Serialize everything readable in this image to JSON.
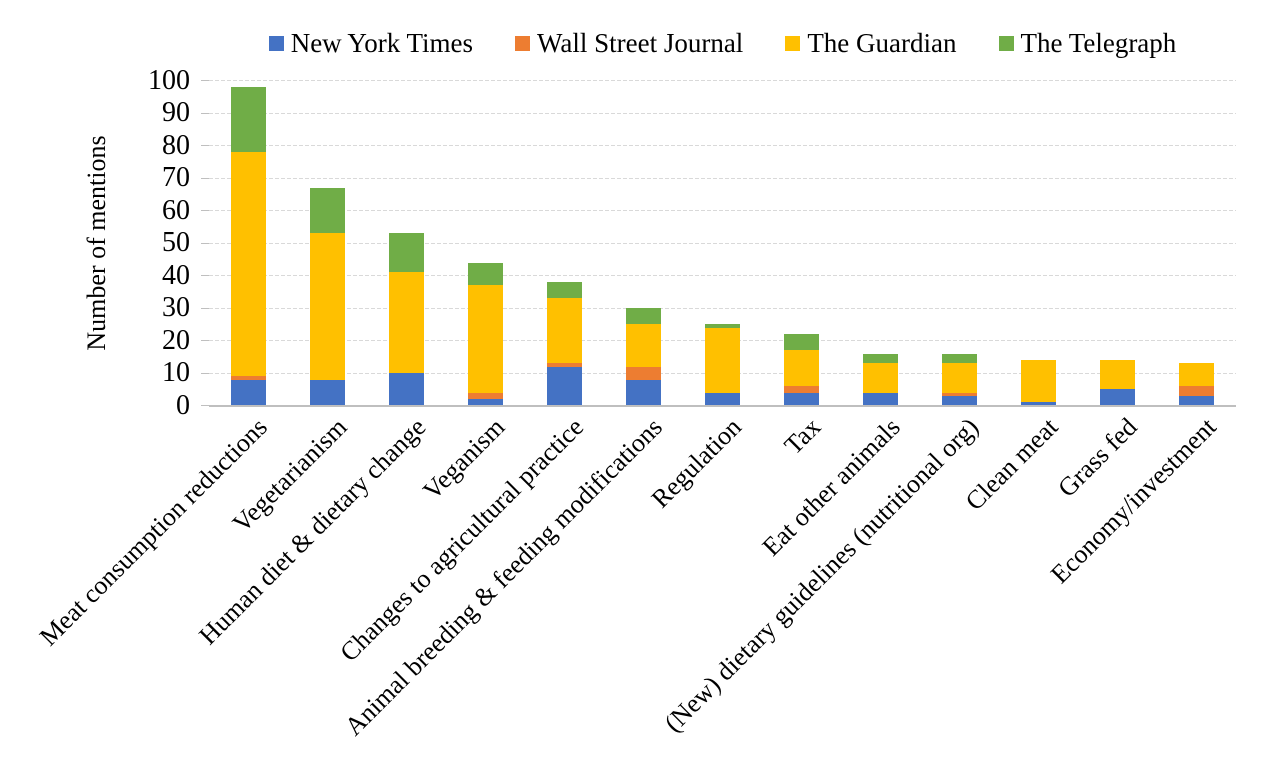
{
  "chart_data": {
    "type": "bar",
    "stacked": true,
    "title": "",
    "xlabel": "",
    "ylabel": "Number of mentions",
    "ylim": [
      0,
      100
    ],
    "yticks": [
      0,
      10,
      20,
      30,
      40,
      50,
      60,
      70,
      80,
      90,
      100
    ],
    "grid": "horizontal-dashed",
    "legend_position": "top",
    "categories": [
      "Meat consumption reductions",
      "Vegetarianism",
      "Human diet & dietary change",
      "Veganism",
      "Changes to agricultural practice",
      "Animal breeding & feeding modifications",
      "Regulation",
      "Tax",
      "Eat other animals",
      "(New) dietary guidelines (nutritional org)",
      "Clean meat",
      "Grass fed",
      "Economy/investment"
    ],
    "series": [
      {
        "name": "New York Times",
        "color": "#4472C4",
        "values": [
          8,
          8,
          10,
          2,
          12,
          8,
          4,
          4,
          4,
          3,
          1,
          5,
          3
        ]
      },
      {
        "name": "Wall Street Journal",
        "color": "#ED7D31",
        "values": [
          1,
          0,
          0,
          2,
          1,
          4,
          0,
          2,
          0,
          1,
          0,
          0,
          3
        ]
      },
      {
        "name": "The Guardian",
        "color": "#FFC000",
        "values": [
          69,
          45,
          31,
          33,
          20,
          13,
          20,
          11,
          9,
          9,
          13,
          9,
          7
        ]
      },
      {
        "name": "The Telegraph",
        "color": "#70AD47",
        "values": [
          20,
          14,
          12,
          7,
          5,
          5,
          1,
          5,
          3,
          3,
          0,
          0,
          0
        ]
      }
    ],
    "style": {
      "gridline_color": "#D9D9D9",
      "axis_line_color": "#BFBFBF",
      "text_color": "#000000",
      "background": "#FFFFFF"
    }
  }
}
